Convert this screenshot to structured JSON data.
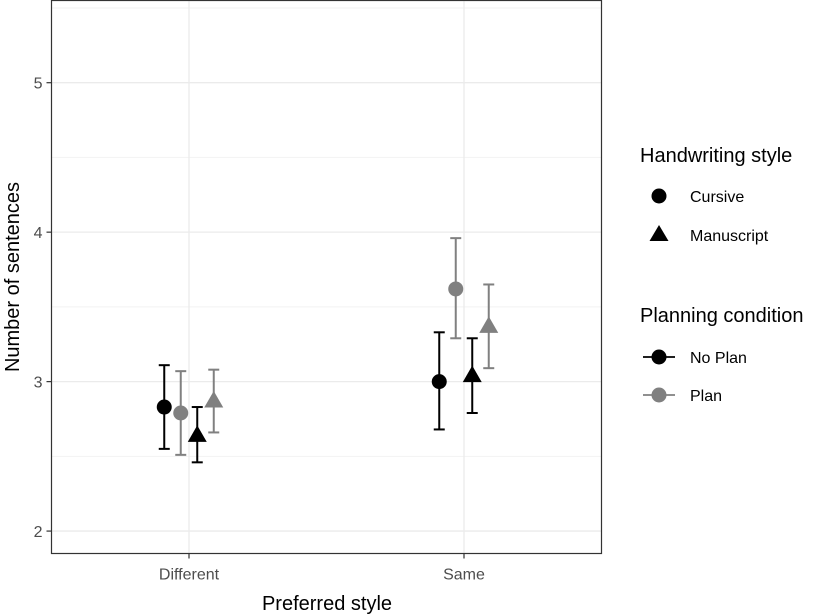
{
  "chart_data": {
    "type": "scatter",
    "subtype": "point-with-error-bars",
    "title": "",
    "xlabel": "Preferred style",
    "ylabel": "Number of sentences",
    "categories": [
      "Different",
      "Same"
    ],
    "ylim": [
      1.85,
      5.55
    ],
    "yticks": [
      2,
      3,
      4,
      5
    ],
    "grid": true,
    "legend_position": "right",
    "series": [
      {
        "handwriting": "Cursive",
        "planning": "No Plan",
        "shape": "circle",
        "color": "#000000",
        "offset": -0.09,
        "values": [
          2.83,
          3.0
        ],
        "lower": [
          2.55,
          2.68
        ],
        "upper": [
          3.11,
          3.33
        ]
      },
      {
        "handwriting": "Cursive",
        "planning": "Plan",
        "shape": "circle",
        "color": "#808080",
        "offset": -0.03,
        "values": [
          2.79,
          3.62
        ],
        "lower": [
          2.51,
          3.29
        ],
        "upper": [
          3.07,
          3.96
        ]
      },
      {
        "handwriting": "Manuscript",
        "planning": "No Plan",
        "shape": "triangle",
        "color": "#000000",
        "offset": 0.03,
        "values": [
          2.64,
          3.04
        ],
        "lower": [
          2.46,
          2.79
        ],
        "upper": [
          2.83,
          3.29
        ]
      },
      {
        "handwriting": "Manuscript",
        "planning": "Plan",
        "shape": "triangle",
        "color": "#808080",
        "offset": 0.09,
        "values": [
          2.87,
          3.37
        ],
        "lower": [
          2.66,
          3.09
        ],
        "upper": [
          3.08,
          3.65
        ]
      }
    ],
    "legends": [
      {
        "title": "Handwriting style",
        "items": [
          {
            "label": "Cursive",
            "shape": "circle",
            "color": "#000000"
          },
          {
            "label": "Manuscript",
            "shape": "triangle",
            "color": "#000000"
          }
        ]
      },
      {
        "title": "Planning condition",
        "items": [
          {
            "label": "No Plan",
            "shape": "circle",
            "color": "#000000"
          },
          {
            "label": "Plan",
            "shape": "circle",
            "color": "#808080"
          }
        ]
      }
    ]
  }
}
